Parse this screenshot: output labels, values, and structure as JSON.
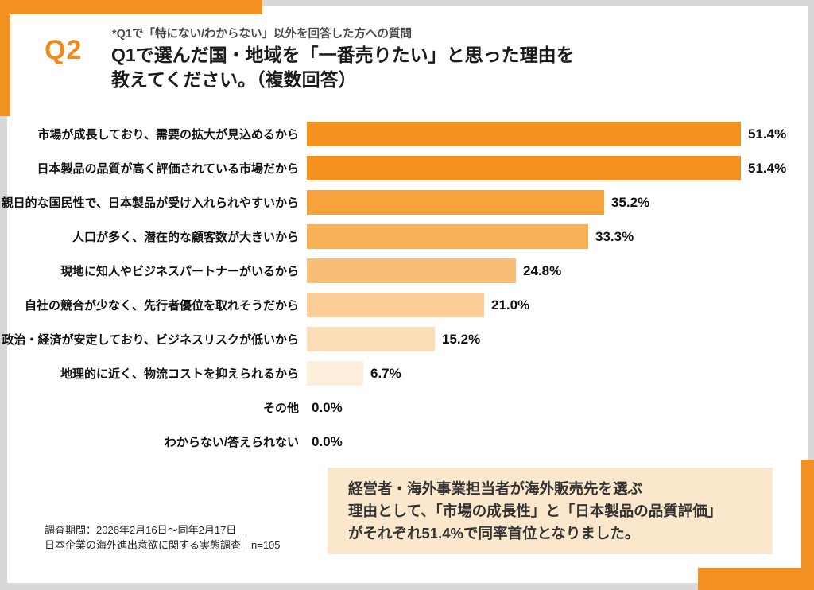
{
  "page": {
    "q_label": "Q2",
    "note": "*Q1で「特にない/わからない」以外を回答した方への質問",
    "title_line1": "Q1で選んだ国・地域を「一番売りたい」と思った理由を",
    "title_line2": "教えてください。（複数回答）"
  },
  "chart_data": {
    "type": "bar",
    "orientation": "horizontal",
    "title": "Q1で選んだ国・地域を「一番売りたい」と思った理由を教えてください。（複数回答）",
    "xlabel": "",
    "ylabel": "",
    "xlim": [
      0,
      55
    ],
    "unit": "%",
    "grid": false,
    "legend": false,
    "categories": [
      "市場が成長しており、需要の拡大が見込めるから",
      "日本製品の品質が高く評価されている市場だから",
      "親日的な国民性で、日本製品が受け入れられやすいから",
      "人口が多く、潜在的な顧客数が大きいから",
      "現地に知人やビジネスパートナーがいるから",
      "自社の競合が少なく、先行者優位を取れそうだから",
      "政治・経済が安定しており、ビジネスリスクが低いから",
      "地理的に近く、物流コストを抑えられるから",
      "その他",
      "わからない/答えられない"
    ],
    "values": [
      51.4,
      51.4,
      35.2,
      33.3,
      24.8,
      21.0,
      15.2,
      6.7,
      0.0,
      0.0
    ],
    "value_labels": [
      "51.4%",
      "51.4%",
      "35.2%",
      "33.3%",
      "24.8%",
      "21.0%",
      "15.2%",
      "6.7%",
      "0.0%",
      "0.0%"
    ],
    "bar_colors": [
      "#F5911E",
      "#F5911E",
      "#F6A33E",
      "#F8B157",
      "#F9BE76",
      "#FACD96",
      "#FBDDB7",
      "#FDEFDC",
      null,
      null
    ]
  },
  "summary": {
    "line1": "経営者・海外事業担当者が海外販売先を選ぶ",
    "line2": "理由として、「市場の成長性」と「日本製品の品質評価」",
    "line3": "がそれぞれ51.4%で同率首位となりました。",
    "background": "#FAE7CC"
  },
  "footer": {
    "line1": "調査期間：2026年2月16日～同年2月17日",
    "line2": "日本企業の海外進出意欲に関する実態調査｜n=105"
  },
  "colors": {
    "accent_orange": "#F29122",
    "frame_gray": "#D8D8D8",
    "q_label_orange": "#F08A1D"
  }
}
